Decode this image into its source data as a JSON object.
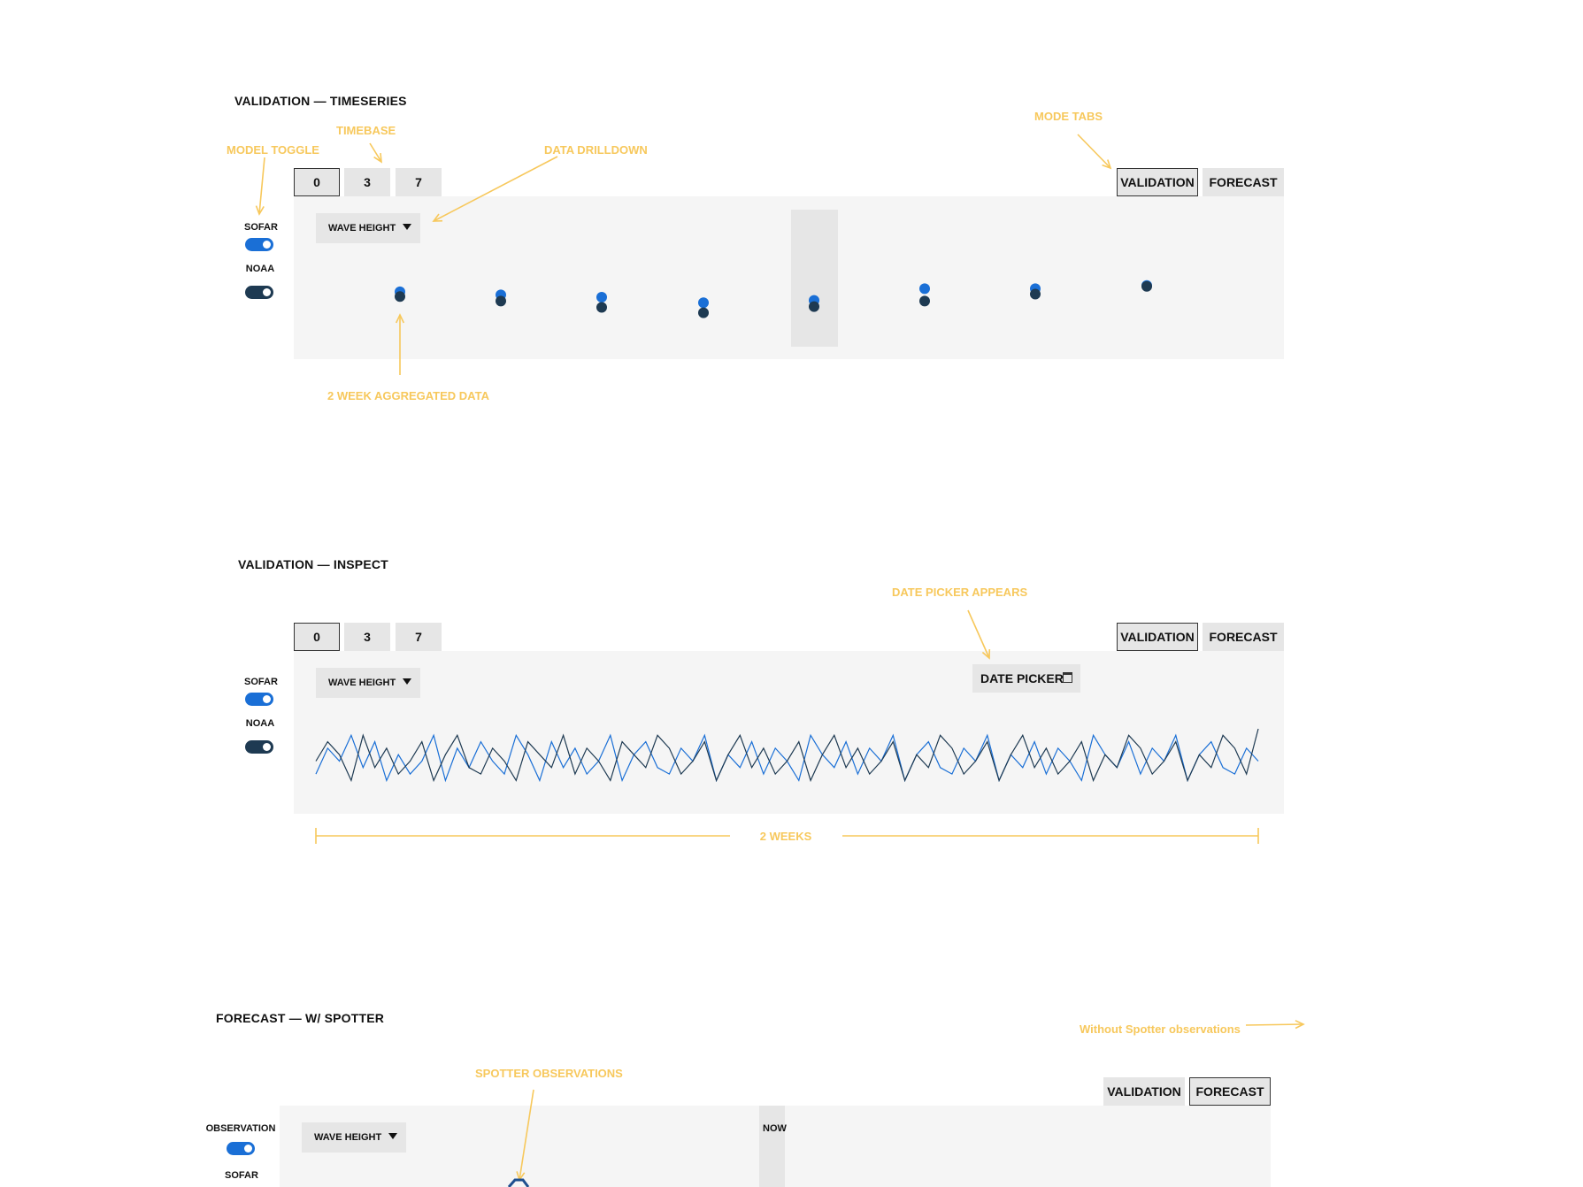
{
  "sections": {
    "timeseries": {
      "title": "VALIDATION — TIMESERIES",
      "timebase": [
        "0",
        "3",
        "7"
      ],
      "modes": [
        "VALIDATION",
        "FORECAST"
      ],
      "dropdown": "WAVE HEIGHT",
      "toggles": [
        "SOFAR",
        "NOAA"
      ],
      "annotations": {
        "model_toggle": "MODEL TOGGLE",
        "timebase": "TIMEBASE",
        "data_drilldown": "DATA DRILLDOWN",
        "mode_tabs": "MODE TABS",
        "aggregated": "2 WEEK AGGREGATED DATA"
      }
    },
    "inspect": {
      "title": "VALIDATION — INSPECT",
      "timebase": [
        "0",
        "3",
        "7"
      ],
      "modes": [
        "VALIDATION",
        "FORECAST"
      ],
      "dropdown": "WAVE HEIGHT",
      "toggles": [
        "SOFAR",
        "NOAA"
      ],
      "date_picker": "DATE PICKER",
      "annotations": {
        "date_picker": "DATE PICKER APPEARS",
        "span": "2 WEEKS"
      }
    },
    "forecast": {
      "title": "FORECAST —  W/ SPOTTER",
      "modes": [
        "VALIDATION",
        "FORECAST"
      ],
      "dropdown": "WAVE HEIGHT",
      "toggles": [
        "OBSERVATION",
        "SOFAR"
      ],
      "now": "NOW",
      "annotations": {
        "without_spotter": "Without Spotter observations",
        "spotter_obs": "SPOTTER OBSERVATIONS"
      }
    }
  },
  "colors": {
    "sofar": "#1a6fd6",
    "noaa": "#1e3a52",
    "annotation": "#f7c85c"
  },
  "chart_data": [
    {
      "type": "scatter",
      "series": [
        {
          "name": "SOFAR",
          "values": [
            0.74,
            0.7,
            0.67,
            0.6,
            0.63,
            0.78,
            0.78,
            0.82
          ]
        },
        {
          "name": "NOAA",
          "values": [
            0.68,
            0.62,
            0.54,
            0.47,
            0.55,
            0.62,
            0.71,
            0.81
          ]
        }
      ]
    },
    {
      "type": "line",
      "series": [
        {
          "name": "SOFAR",
          "values": [
            0.3,
            0.7,
            0.5,
            0.9,
            0.4,
            0.8,
            0.2,
            0.6,
            0.3,
            0.5,
            0.9,
            0.2,
            0.7,
            0.4,
            0.8,
            0.5,
            0.3,
            0.9,
            0.6,
            0.2,
            0.8,
            0.4,
            0.7,
            0.3,
            0.5,
            0.9,
            0.2,
            0.6,
            0.8,
            0.4,
            0.3,
            0.7,
            0.5,
            0.9,
            0.2,
            0.6,
            0.4,
            0.8,
            0.3,
            0.7,
            0.5,
            0.2,
            0.9,
            0.6,
            0.4,
            0.8,
            0.3,
            0.7,
            0.5,
            0.9,
            0.2,
            0.6,
            0.8,
            0.4,
            0.3,
            0.7,
            0.5,
            0.9,
            0.2,
            0.6,
            0.4,
            0.8,
            0.3,
            0.7,
            0.5,
            0.2,
            0.9,
            0.6,
            0.4,
            0.8,
            0.3,
            0.7,
            0.5,
            0.9,
            0.2,
            0.6,
            0.8,
            0.4,
            0.3,
            0.7,
            0.5
          ]
        },
        {
          "name": "NOAA",
          "values": [
            0.5,
            0.8,
            0.6,
            0.2,
            0.9,
            0.4,
            0.7,
            0.3,
            0.5,
            0.8,
            0.2,
            0.6,
            0.9,
            0.4,
            0.3,
            0.7,
            0.5,
            0.2,
            0.8,
            0.6,
            0.4,
            0.9,
            0.3,
            0.7,
            0.5,
            0.2,
            0.8,
            0.6,
            0.4,
            0.9,
            0.7,
            0.3,
            0.5,
            0.8,
            0.2,
            0.6,
            0.9,
            0.4,
            0.7,
            0.3,
            0.5,
            0.8,
            0.2,
            0.6,
            0.9,
            0.4,
            0.7,
            0.3,
            0.5,
            0.8,
            0.2,
            0.6,
            0.4,
            0.9,
            0.7,
            0.3,
            0.5,
            0.8,
            0.2,
            0.6,
            0.9,
            0.4,
            0.7,
            0.3,
            0.5,
            0.8,
            0.2,
            0.6,
            0.4,
            0.9,
            0.7,
            0.3,
            0.5,
            0.8,
            0.2,
            0.6,
            0.4,
            0.9,
            0.7,
            0.3,
            1.0
          ]
        }
      ]
    }
  ]
}
